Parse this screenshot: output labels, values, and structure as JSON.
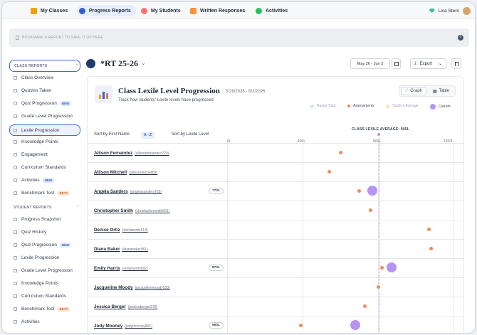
{
  "nav": {
    "items": [
      {
        "label": "My Classes",
        "active": false,
        "icon": "bar-chart-icon",
        "color": "#f59e0b"
      },
      {
        "label": "Progress Reports",
        "active": true,
        "icon": "progress-icon",
        "color": "#2f5fd0"
      },
      {
        "label": "My Students",
        "active": false,
        "icon": "student-icon",
        "color": "#f87171"
      },
      {
        "label": "Written Responses",
        "active": false,
        "icon": "pencil-icon",
        "color": "#fb923c"
      },
      {
        "label": "Activities",
        "active": false,
        "icon": "check-circle-icon",
        "color": "#22c55e"
      }
    ],
    "user_name": "Lisa Stern"
  },
  "bookmark": {
    "text": "BOOKMARK A REPORT TO SAVE IT UP HERE"
  },
  "sidebar": {
    "class_reports_title": "CLASS REPORTS",
    "class_reports": [
      {
        "label": "Class Overview"
      },
      {
        "label": "Quizzes Taken"
      },
      {
        "label": "Quiz Progression",
        "badge": "NEW"
      },
      {
        "label": "Grade Level Progression"
      },
      {
        "label": "Lexile Progression",
        "selected": true
      },
      {
        "label": "Knowledge Points"
      },
      {
        "label": "Engagement"
      },
      {
        "label": "Curriculum Standards"
      },
      {
        "label": "Activities",
        "badge": "NEW"
      },
      {
        "label": "Benchmark Test",
        "badge": "BETA"
      }
    ],
    "student_reports_title": "STUDENT REPORTS",
    "student_reports": [
      {
        "label": "Progress Snapshot"
      },
      {
        "label": "Quiz History"
      },
      {
        "label": "Quiz Progression",
        "badge": "NEW"
      },
      {
        "label": "Lexile Progression"
      },
      {
        "label": "Grade Level Progression"
      },
      {
        "label": "Knowledge Points"
      },
      {
        "label": "Curriculum Standards"
      },
      {
        "label": "Benchmark Test",
        "badge": "BETA"
      },
      {
        "label": "Activities"
      }
    ]
  },
  "header": {
    "class_name": "*RT 25-26",
    "date_range": "May 26 - Jun 3",
    "export_label": "Export"
  },
  "card": {
    "title": "Class Lexile Level Progression",
    "range": "5/26/2026 - 6/2/2026",
    "subtitle": "Track how students' Lexile levels have progressed",
    "graph_label": "Graph",
    "table_label": "Table",
    "legend": {
      "range_start": "Range Start",
      "assessments": "Assessments",
      "student_average": "Student Average",
      "current": "Current"
    },
    "sort_first": "Sort by First Name",
    "sort_az": "A - Z",
    "sort_lexile": "Sort by Lexile Level",
    "average_label": "CLASS LEXILE AVERAGE: 805L"
  },
  "colors": {
    "assessment": "#f08a5d",
    "current": "#b794f4",
    "accent": "#2f5fd0"
  },
  "chart_data": {
    "type": "scatter",
    "x_ticks": [
      "0L",
      "400L",
      "800L",
      "1200L"
    ],
    "xlim": [
      0,
      1200
    ],
    "class_average": 805,
    "students": [
      {
        "name": "Allison Fernandez",
        "handle": "(allisonfernandez720)",
        "pill": "",
        "assessment": 600,
        "current": null
      },
      {
        "name": "Allison Mitchell",
        "handle": "(allisonmitchell69)",
        "pill": "",
        "assessment": 540,
        "current": null
      },
      {
        "name": "Angela Sanders",
        "handle": "(angelasanders762)",
        "pill": "770L",
        "assessment": 700,
        "current": 770
      },
      {
        "name": "Christopher Smith",
        "handle": "(christophersmith561)",
        "pill": "",
        "assessment": 760,
        "current": null
      },
      {
        "name": "Denise Ortiz",
        "handle": "(deniseortiz514)",
        "pill": "",
        "assessment": 1070,
        "current": null
      },
      {
        "name": "Diana Baker",
        "handle": "(dianabaker961)",
        "pill": "",
        "assessment": 1080,
        "current": null
      },
      {
        "name": "Emily Harris",
        "handle": "(emilyharris692)",
        "pill": "870L",
        "assessment": 820,
        "current": 870
      },
      {
        "name": "Jacqueline Moody",
        "handle": "(jacquelinemoody533)",
        "pill": "",
        "assessment": 800,
        "current": null
      },
      {
        "name": "Jessica Berger",
        "handle": "(jessicaberger578)",
        "pill": "",
        "assessment": 730,
        "current": null
      },
      {
        "name": "Jody Mooney",
        "handle": "(jodymooney801)",
        "pill": "680L",
        "assessment": 390,
        "current": 680
      }
    ]
  }
}
